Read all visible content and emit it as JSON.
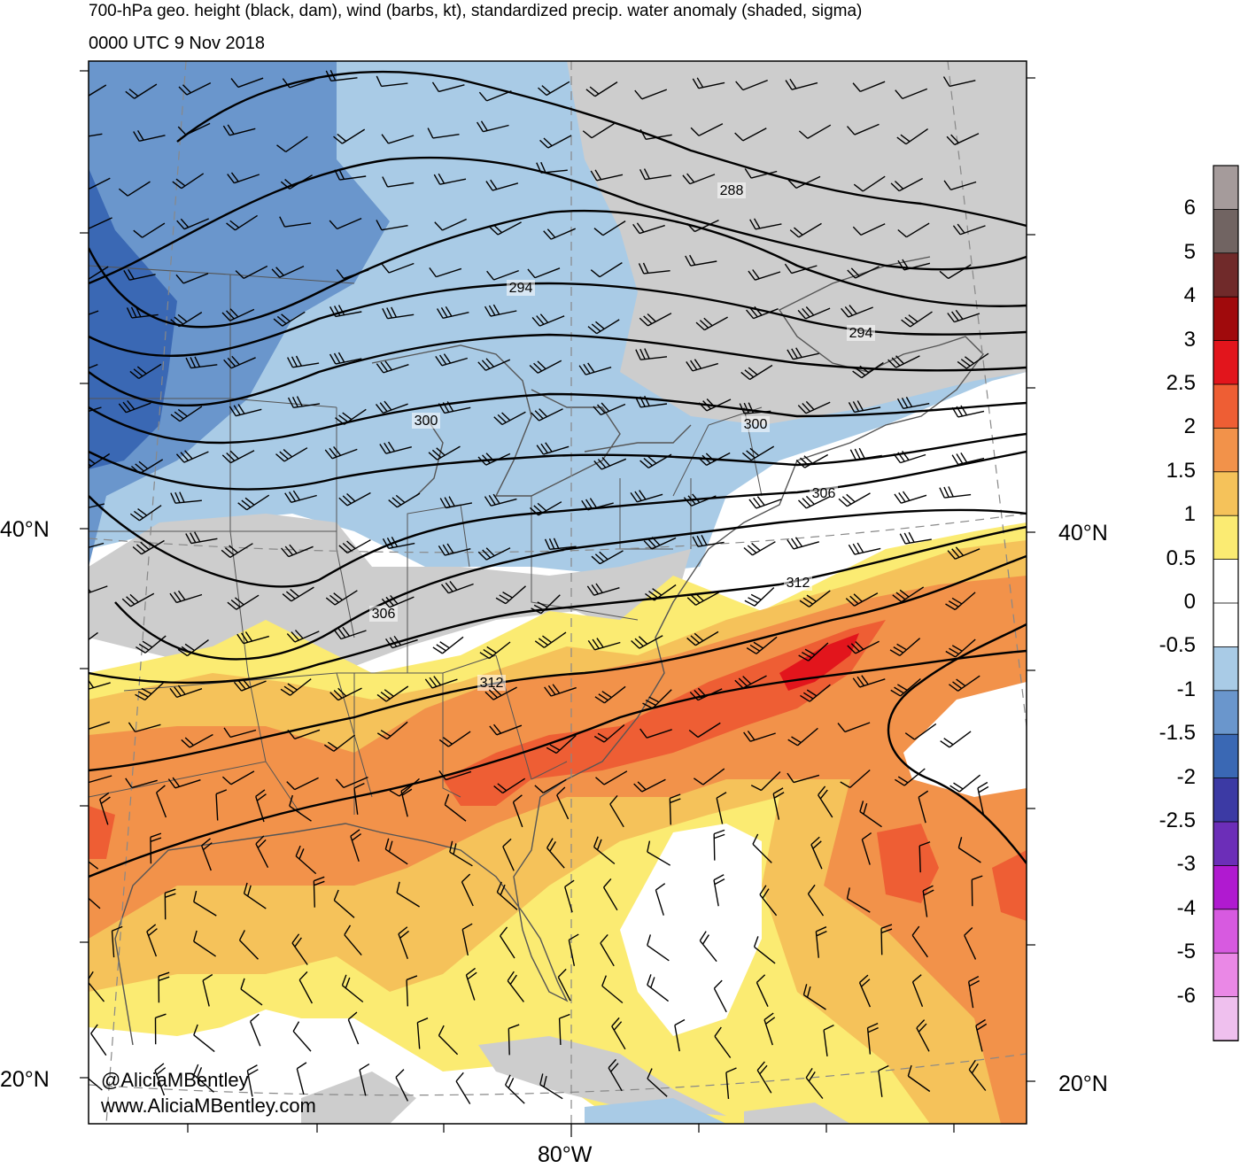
{
  "header": {
    "title": "700-hPa geo. height (black, dam), wind (barbs, kt), standardized precip. water anomaly (shaded, sigma)",
    "valid_time": "0000 UTC 9 Nov 2018"
  },
  "map": {
    "lat_labels": [
      "40°N",
      "20°N"
    ],
    "lon_labels": [
      "80°W"
    ],
    "contour_labels": [
      "288",
      "294",
      "294",
      "300",
      "300",
      "306",
      "306",
      "312",
      "312"
    ],
    "colors": {
      "land_grey": "#cdcdcd",
      "anom_-1.5": "#6a96cc",
      "anom_-2": "#3a68b4",
      "anom_-1": "#a9cbe6",
      "anom_0.5": "#fbeb72",
      "anom_1": "#f5c25a",
      "anom_1.5": "#f2924a",
      "anom_2": "#ee5e34",
      "anom_2.5": "#e2151c",
      "anom_3": "#b00010"
    }
  },
  "credits": {
    "handle": "@AliciaMBentley",
    "website": "www.AliciaMBentley.com"
  },
  "colorbar": {
    "labels": [
      "6",
      "5",
      "4",
      "3",
      "2.5",
      "2",
      "1.5",
      "1",
      "0.5",
      "0",
      "-0.5",
      "-1",
      "-1.5",
      "-2",
      "-2.5",
      "-3",
      "-4",
      "-5",
      "-6"
    ],
    "colors": [
      "#a59b9b",
      "#716462",
      "#702a2a",
      "#a00a0c",
      "#e2151c",
      "#ee5e34",
      "#f2924a",
      "#f5c25a",
      "#fbeb72",
      "#ffffff",
      "#ffffff",
      "#a9cbe6",
      "#6a96cc",
      "#3a68b4",
      "#3c3aa4",
      "#6c2eb8",
      "#b01ad0",
      "#d75ae0",
      "#ea88e6",
      "#efc0ee"
    ]
  }
}
